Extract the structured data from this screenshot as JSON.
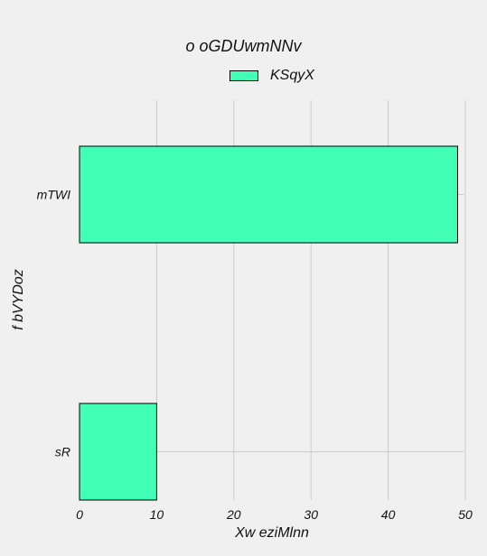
{
  "chart_data": {
    "type": "bar",
    "orientation": "horizontal",
    "title": "o oGDUwmNNv",
    "xlabel": "Xw eziMlnn",
    "ylabel": "f bVYDoz",
    "categories": [
      "sR",
      "mTWI"
    ],
    "series": [
      {
        "name": "KSqyX",
        "values": [
          10,
          49
        ],
        "color": "#41ffb4"
      }
    ],
    "xlim": [
      0,
      50
    ],
    "xticks": [
      0,
      10,
      20,
      30,
      40,
      50
    ],
    "grid": true,
    "legend_position": "top-center"
  }
}
